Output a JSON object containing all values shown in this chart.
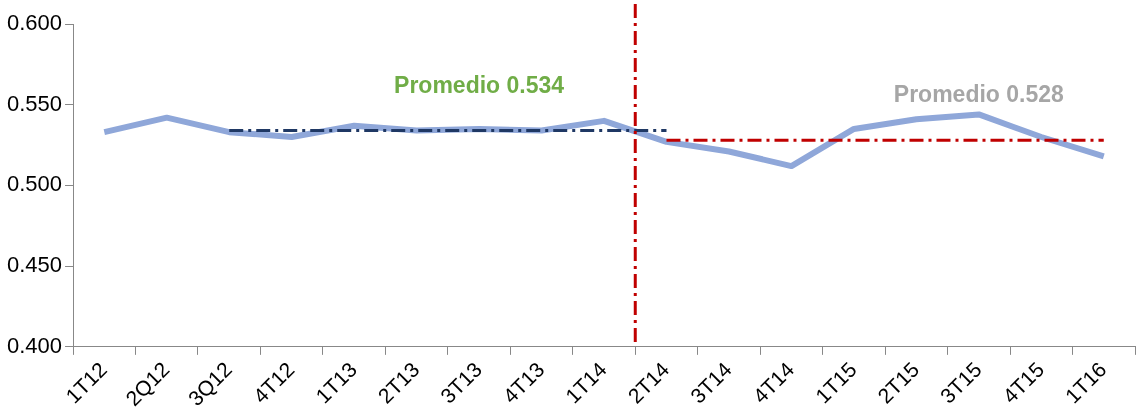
{
  "chart_data": {
    "type": "line",
    "categories": [
      "1T12",
      "2Q12",
      "3Q12",
      "4T12",
      "1T13",
      "2T13",
      "3T13",
      "4T13",
      "1T14",
      "2T14",
      "3T14",
      "4T14",
      "1T15",
      "2T15",
      "3T15",
      "4T15",
      "1T16"
    ],
    "series": [
      {
        "color": "#8fa7d9",
        "values": [
          0.533,
          0.542,
          0.533,
          0.53,
          0.537,
          0.534,
          0.535,
          0.534,
          0.54,
          0.527,
          0.521,
          0.512,
          0.535,
          0.541,
          0.544,
          0.53,
          0.518
        ]
      },
      {
        "color": "#1f3864",
        "line_style": "dashed",
        "values": [
          null,
          null,
          0.534,
          0.534,
          0.534,
          0.534,
          0.534,
          0.534,
          0.534,
          0.534,
          null,
          null,
          null,
          null,
          null,
          null,
          null
        ]
      },
      {
        "color": "#c00000",
        "line_style": "dashed",
        "values": [
          null,
          null,
          null,
          null,
          null,
          null,
          null,
          null,
          null,
          0.528,
          0.528,
          0.528,
          0.528,
          0.528,
          0.528,
          0.528,
          0.528
        ]
      }
    ],
    "ylim": [
      0.4,
      0.6
    ],
    "yticks": [
      {
        "value": 0.4,
        "label": "0.400"
      },
      {
        "value": 0.45,
        "label": "0.450"
      },
      {
        "value": 0.5,
        "label": "0.500"
      },
      {
        "value": 0.55,
        "label": "0.550"
      },
      {
        "value": 0.6,
        "label": "0.600"
      }
    ],
    "ref_lines": [
      {
        "axis": "x",
        "value": "2T14",
        "color": "#c00000",
        "line_style": "dashed"
      }
    ],
    "annotations": [
      {
        "text": "Promedio 0.534",
        "x": "3T13",
        "y": 0.534
      },
      {
        "text": "Promedio 0.528",
        "x": "3T15",
        "y": 0.528
      }
    ],
    "grid": false,
    "legend": false,
    "marker": "none"
  }
}
